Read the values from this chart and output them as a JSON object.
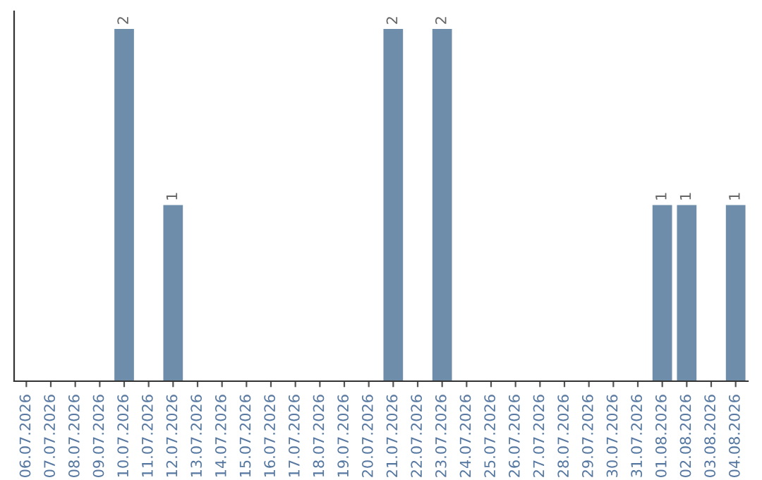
{
  "chart_data": {
    "type": "bar",
    "categories": [
      "06.07.2026",
      "07.07.2026",
      "08.07.2026",
      "09.07.2026",
      "10.07.2026",
      "11.07.2026",
      "12.07.2026",
      "13.07.2026",
      "14.07.2026",
      "15.07.2026",
      "16.07.2026",
      "17.07.2026",
      "18.07.2026",
      "19.07.2026",
      "20.07.2026",
      "21.07.2026",
      "22.07.2026",
      "23.07.2026",
      "24.07.2026",
      "25.07.2026",
      "26.07.2026",
      "27.07.2026",
      "28.07.2026",
      "29.07.2026",
      "30.07.2026",
      "31.07.2026",
      "01.08.2026",
      "02.08.2026",
      "03.08.2026",
      "04.08.2026"
    ],
    "values": [
      0,
      0,
      0,
      0,
      2,
      0,
      1,
      0,
      0,
      0,
      0,
      0,
      0,
      0,
      0,
      2,
      0,
      2,
      0,
      0,
      0,
      0,
      0,
      0,
      0,
      0,
      1,
      1,
      0,
      1
    ],
    "value_labels": [
      null,
      null,
      null,
      null,
      "2",
      null,
      "1",
      null,
      null,
      null,
      null,
      null,
      null,
      null,
      null,
      "2",
      null,
      "2",
      null,
      null,
      null,
      null,
      null,
      null,
      null,
      null,
      "1",
      "1",
      null,
      "1"
    ],
    "color": "#6d8dab",
    "tick_labels": "x",
    "grid": false,
    "legend": false
  }
}
